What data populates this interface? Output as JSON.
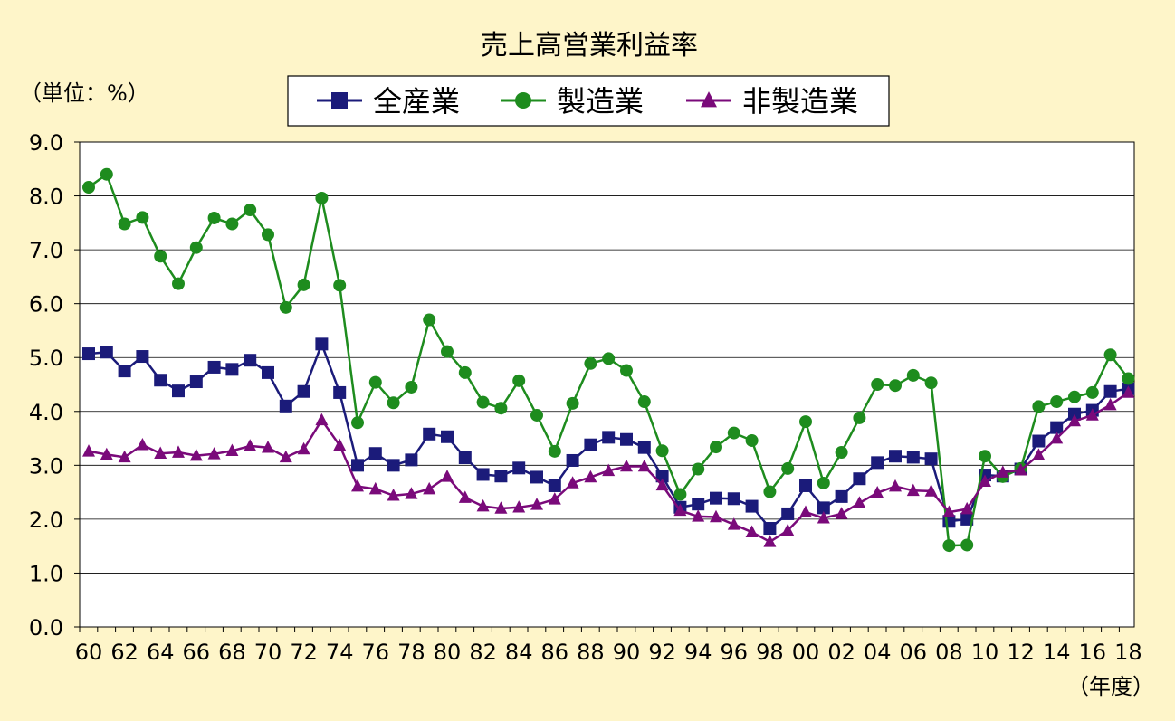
{
  "chart_data": {
    "type": "line",
    "title": "売上高営業利益率",
    "unit_label": "（単位：%）",
    "xlabel": "（年度）",
    "ylabel": "",
    "ylim": [
      0,
      9
    ],
    "yticks": [
      "0.0",
      "1.0",
      "2.0",
      "3.0",
      "4.0",
      "5.0",
      "6.0",
      "7.0",
      "8.0",
      "9.0"
    ],
    "grid": true,
    "legend_position": "top-center",
    "x": [
      1960,
      1961,
      1962,
      1963,
      1964,
      1965,
      1966,
      1967,
      1968,
      1969,
      1970,
      1971,
      1972,
      1973,
      1974,
      1975,
      1976,
      1977,
      1978,
      1979,
      1980,
      1981,
      1982,
      1983,
      1984,
      1985,
      1986,
      1987,
      1988,
      1989,
      1990,
      1991,
      1992,
      1993,
      1994,
      1995,
      1996,
      1997,
      1998,
      1999,
      2000,
      2001,
      2002,
      2003,
      2004,
      2005,
      2006,
      2007,
      2008,
      2009,
      2010,
      2011,
      2012,
      2013,
      2014,
      2015,
      2016,
      2017,
      2018
    ],
    "xticks": [
      "60",
      "62",
      "64",
      "66",
      "68",
      "70",
      "72",
      "74",
      "76",
      "78",
      "80",
      "82",
      "84",
      "86",
      "88",
      "90",
      "92",
      "94",
      "96",
      "98",
      "00",
      "02",
      "04",
      "06",
      "08",
      "10",
      "12",
      "14",
      "16",
      "18"
    ],
    "series": [
      {
        "name": "全産業",
        "color": "#1B1B7A",
        "marker": "square",
        "values": [
          5.07,
          5.1,
          4.75,
          5.02,
          4.58,
          4.38,
          4.55,
          4.82,
          4.78,
          4.95,
          4.72,
          4.1,
          4.37,
          5.25,
          4.35,
          3.0,
          3.22,
          3.0,
          3.1,
          3.58,
          3.53,
          3.14,
          2.83,
          2.8,
          2.95,
          2.78,
          2.62,
          3.09,
          3.38,
          3.52,
          3.48,
          3.33,
          2.8,
          2.22,
          2.28,
          2.39,
          2.38,
          2.24,
          1.83,
          2.1,
          2.62,
          2.21,
          2.42,
          2.75,
          3.05,
          3.17,
          3.15,
          3.12,
          1.96,
          2.0,
          2.82,
          2.8,
          2.93,
          3.45,
          3.7,
          3.95,
          4.02,
          4.37,
          4.42
        ]
      },
      {
        "name": "製造業",
        "color": "#1E8C1E",
        "marker": "circle",
        "values": [
          8.16,
          8.4,
          7.48,
          7.6,
          6.88,
          6.37,
          7.04,
          7.59,
          7.48,
          7.74,
          7.28,
          5.93,
          6.35,
          7.96,
          6.34,
          3.79,
          4.54,
          4.16,
          4.45,
          5.7,
          5.11,
          4.72,
          4.17,
          4.06,
          4.57,
          3.93,
          3.26,
          4.15,
          4.89,
          4.98,
          4.76,
          4.18,
          3.27,
          2.46,
          2.93,
          3.34,
          3.6,
          3.46,
          2.51,
          2.94,
          3.81,
          2.67,
          3.24,
          3.88,
          4.5,
          4.48,
          4.67,
          4.53,
          1.51,
          1.52,
          3.17,
          2.79,
          2.94,
          4.09,
          4.18,
          4.27,
          4.35,
          5.05,
          4.61
        ]
      },
      {
        "name": "非製造業",
        "color": "#7A0A7A",
        "marker": "triangle",
        "values": [
          3.26,
          3.2,
          3.15,
          3.38,
          3.22,
          3.24,
          3.18,
          3.21,
          3.27,
          3.36,
          3.33,
          3.15,
          3.3,
          3.84,
          3.37,
          2.61,
          2.56,
          2.44,
          2.47,
          2.56,
          2.79,
          2.4,
          2.24,
          2.2,
          2.22,
          2.27,
          2.37,
          2.67,
          2.78,
          2.9,
          2.98,
          2.98,
          2.63,
          2.16,
          2.05,
          2.04,
          1.9,
          1.76,
          1.58,
          1.79,
          2.13,
          2.02,
          2.1,
          2.3,
          2.49,
          2.61,
          2.53,
          2.52,
          2.13,
          2.19,
          2.7,
          2.87,
          2.91,
          3.19,
          3.5,
          3.82,
          3.93,
          4.12,
          4.35
        ]
      }
    ]
  }
}
